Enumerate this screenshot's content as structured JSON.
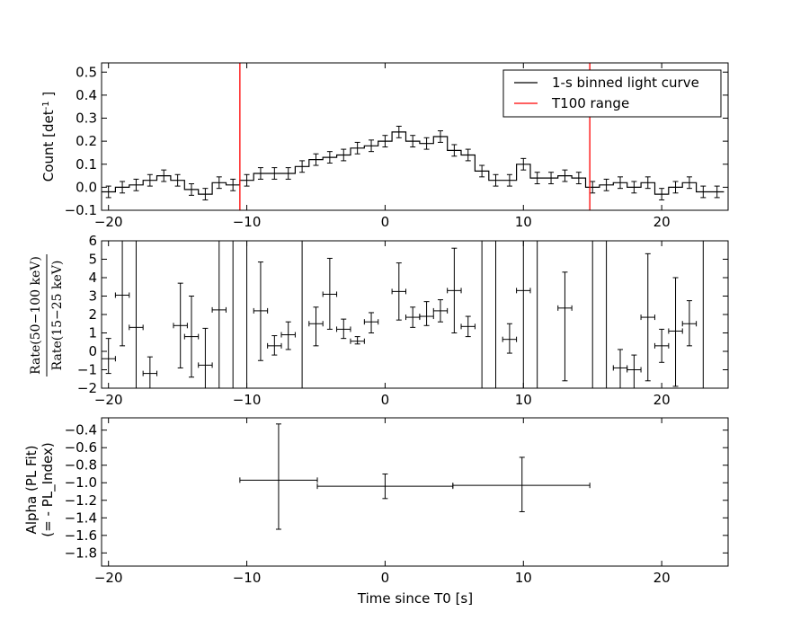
{
  "chart_data": [
    {
      "type": "step-errorbar",
      "ylabel": "Count [det",
      "ylabel_sup": "-1",
      "ylabel_end": " ]",
      "xlim": [
        -20.5,
        24.8
      ],
      "ylim": [
        -0.1,
        0.54
      ],
      "xticks": [
        -20,
        -10,
        0,
        10,
        20
      ],
      "xtick_labels": [
        "−20",
        "−10",
        "0",
        "10",
        "20"
      ],
      "yticks": [
        -0.1,
        0.0,
        0.1,
        0.2,
        0.3,
        0.4,
        0.5
      ],
      "ytick_labels": [
        "−0.1",
        "0.0",
        "0.1",
        "0.2",
        "0.3",
        "0.4",
        "0.5"
      ],
      "legend_position": "top-right",
      "series": [
        {
          "name": "1-s binned light curve",
          "color": "#000000",
          "x": [
            -20,
            -19,
            -18,
            -17,
            -16,
            -15,
            -14,
            -13,
            -12,
            -11,
            -10,
            -9,
            -8,
            -7,
            -6,
            -5,
            -4,
            -3,
            -2,
            -1,
            0,
            1,
            2,
            3,
            4,
            5,
            6,
            7,
            8,
            9,
            10,
            11,
            12,
            13,
            14,
            15,
            16,
            17,
            18,
            19,
            20,
            21,
            22,
            23,
            24
          ],
          "y": [
            -0.02,
            0.0,
            0.01,
            0.03,
            0.05,
            0.03,
            -0.01,
            -0.03,
            0.02,
            0.01,
            0.03,
            0.06,
            0.06,
            0.06,
            0.09,
            0.12,
            0.13,
            0.14,
            0.17,
            0.18,
            0.2,
            0.24,
            0.2,
            0.19,
            0.22,
            0.16,
            0.14,
            0.07,
            0.03,
            0.03,
            0.1,
            0.04,
            0.04,
            0.05,
            0.04,
            0.0,
            0.01,
            0.02,
            0.0,
            0.02,
            -0.03,
            0.0,
            0.02,
            -0.02,
            -0.02
          ],
          "yerr": [
            0.025,
            0.025,
            0.025,
            0.025,
            0.025,
            0.025,
            0.025,
            0.025,
            0.025,
            0.025,
            0.025,
            0.025,
            0.025,
            0.025,
            0.025,
            0.025,
            0.025,
            0.025,
            0.025,
            0.025,
            0.025,
            0.025,
            0.025,
            0.025,
            0.025,
            0.025,
            0.025,
            0.025,
            0.025,
            0.025,
            0.025,
            0.025,
            0.025,
            0.025,
            0.025,
            0.025,
            0.025,
            0.025,
            0.025,
            0.025,
            0.025,
            0.025,
            0.025,
            0.025,
            0.025
          ]
        },
        {
          "name": "T100 range",
          "color": "#ff0000",
          "vlines": [
            -10.5,
            14.8
          ]
        }
      ]
    },
    {
      "type": "errorbar",
      "ylabel_line1": "Rate(50−100 keV)",
      "ylabel_line2": "Rate(15−25 keV)",
      "xlim": [
        -20.5,
        24.8
      ],
      "ylim": [
        -2,
        6
      ],
      "xticks": [
        -20,
        -10,
        0,
        10,
        20
      ],
      "xtick_labels": [
        "−20",
        "−10",
        "0",
        "10",
        "20"
      ],
      "yticks": [
        -2,
        -1,
        0,
        1,
        2,
        3,
        4,
        5,
        6
      ],
      "ytick_labels": [
        "−2",
        "−1",
        "0",
        "1",
        "2",
        "3",
        "4",
        "5",
        "6"
      ],
      "series": [
        {
          "color": "#000000",
          "x": [
            -20,
            -19,
            -18,
            -17,
            -14.8,
            -14,
            -13,
            -12,
            -9,
            -8,
            -7,
            -5,
            -4,
            -3,
            -2,
            -1,
            1,
            2,
            3,
            4,
            5,
            6,
            9,
            10,
            13,
            17,
            18,
            19,
            20,
            21,
            22
          ],
          "y": [
            -0.4,
            3.05,
            1.3,
            -1.2,
            1.4,
            0.8,
            -0.75,
            2.25,
            2.2,
            0.3,
            0.9,
            1.5,
            3.1,
            1.2,
            0.55,
            1.6,
            3.25,
            1.85,
            1.9,
            2.2,
            3.3,
            1.35,
            0.65,
            3.3,
            2.35,
            -0.9,
            -1.0,
            1.85,
            0.3,
            1.1,
            1.5
          ],
          "ylo": [
            -1.2,
            0.3,
            -2.0,
            -2.0,
            -0.9,
            -1.4,
            -2.0,
            -2.0,
            -0.5,
            -0.2,
            0.1,
            0.3,
            1.2,
            0.7,
            0.4,
            1.0,
            1.7,
            1.3,
            1.4,
            1.6,
            1.0,
            0.8,
            -0.1,
            -2.0,
            -1.6,
            -2.0,
            -2.0,
            -1.6,
            -0.6,
            -1.9,
            0.3
          ],
          "yhi": [
            0.7,
            6.0,
            6.0,
            -0.3,
            3.7,
            3.0,
            1.25,
            6.0,
            4.85,
            0.85,
            1.6,
            2.4,
            5.05,
            1.75,
            0.8,
            2.1,
            4.8,
            2.4,
            2.7,
            2.8,
            5.6,
            1.9,
            1.5,
            6.0,
            4.3,
            0.1,
            -0.2,
            5.3,
            1.2,
            4.0,
            2.75
          ]
        }
      ],
      "full_span_bins": [
        -11,
        -10,
        -6,
        7,
        8,
        11,
        15,
        16,
        23
      ]
    },
    {
      "type": "errorbar",
      "ylabel_line1": "Alpha (PL Fit)",
      "ylabel_line2": "(= - PL_Index)",
      "xlabel": "Time since T0 [s]",
      "xlim": [
        -20.5,
        24.8
      ],
      "ylim": [
        -1.95,
        -0.26
      ],
      "xticks": [
        -20,
        -10,
        0,
        10,
        20
      ],
      "xtick_labels": [
        "−20",
        "−10",
        "0",
        "10",
        "20"
      ],
      "yticks": [
        -1.8,
        -1.6,
        -1.4,
        -1.2,
        -1.0,
        -0.8,
        -0.6,
        -0.4
      ],
      "ytick_labels": [
        "−1.8",
        "−1.6",
        "−1.4",
        "−1.2",
        "−1.0",
        "−0.8",
        "−0.6",
        "−0.4"
      ],
      "series": [
        {
          "color": "#000000",
          "x": [
            -7.7,
            0.0,
            9.9
          ],
          "xlo": [
            -10.5,
            -4.9,
            4.9
          ],
          "xhi": [
            -4.9,
            4.9,
            14.8
          ],
          "y": [
            -0.97,
            -1.04,
            -1.03
          ],
          "ylo": [
            -1.53,
            -1.18,
            -1.33
          ],
          "yhi": [
            -0.33,
            -0.9,
            -0.71
          ]
        }
      ]
    }
  ]
}
